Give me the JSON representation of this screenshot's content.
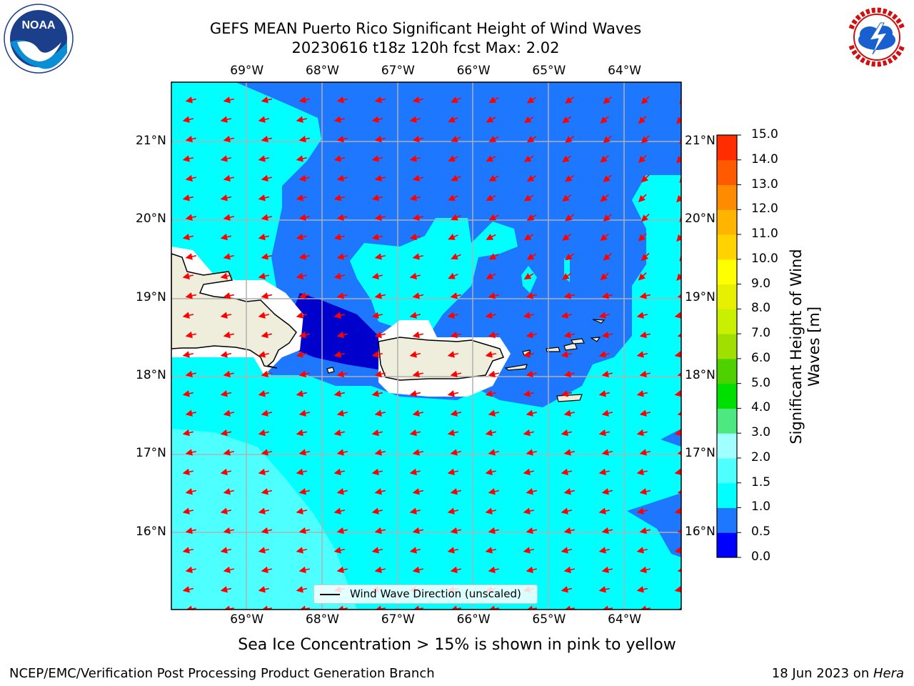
{
  "title": {
    "line1": "GEFS MEAN Puerto Rico Significant Height of Wind Waves",
    "line2": "20230616 t18z 120h fcst   Max: 2.02"
  },
  "caption": "Sea Ice Concentration > 15% is shown in pink to yellow",
  "footer": {
    "left": "NCEP/EMC/Verification Post Processing Product Generation Branch",
    "right_date": "18 Jun 2023 on ",
    "right_host": "Hera"
  },
  "logos": {
    "noaa": {
      "text": "NOAA",
      "ring_text": "NATIONAL OCEANIC AND ATMOSPHERIC ADMINISTRATION · U.S. DEPARTMENT OF COMMERCE"
    },
    "nws": {
      "ring_text": "NATIONAL WEATHER SERVICE"
    }
  },
  "map": {
    "lon_labels": [
      "69°W",
      "68°W",
      "67°W",
      "66°W",
      "65°W",
      "64°W"
    ],
    "lon_values": [
      -69,
      -68,
      -67,
      -66,
      -65,
      -64
    ],
    "lat_labels": [
      "21°N",
      "20°N",
      "19°N",
      "18°N",
      "17°N",
      "16°N"
    ],
    "lat_values": [
      21,
      20,
      19,
      18,
      17,
      16
    ],
    "lon_range": [
      -70.0,
      -63.25
    ],
    "lat_range": [
      15.0,
      21.75
    ],
    "legend_label": "Wind Wave Direction (unscaled)",
    "arrow_color": "#ff0000",
    "land_color": "#efeedd",
    "wave_direction": "toward west-southwest"
  },
  "colorbar": {
    "title": "Significant Height of Wind Waves [m]",
    "title_line1": "Significant Height of Wind",
    "title_line2": "Waves [m]",
    "ticks": [
      "0.0",
      "0.5",
      "1.0",
      "1.5",
      "2.0",
      "3.0",
      "4.0",
      "5.0",
      "6.0",
      "7.0",
      "8.0",
      "9.0",
      "10.0",
      "11.0",
      "12.0",
      "13.0",
      "14.0",
      "15.0"
    ],
    "colors": [
      "#0000ff",
      "#1e78ff",
      "#00ffff",
      "#4dffff",
      "#a0ffff",
      "#4de980",
      "#00e000",
      "#4dd200",
      "#a0e000",
      "#c8f000",
      "#e6f000",
      "#ffff00",
      "#ffd200",
      "#ffb400",
      "#ff8c00",
      "#ff5a00",
      "#ff2d00"
    ]
  },
  "chart_data": {
    "type": "heatmap",
    "title": "GEFS MEAN Puerto Rico Significant Height of Wind Waves",
    "subtitle": "20230616 t18z 120h fcst   Max: 2.02",
    "variable": "Significant Height of Wind Waves [m]",
    "max_value": 2.02,
    "colorbar_range": [
      0.0,
      15.0
    ],
    "x_ticks": [
      "69°W",
      "68°W",
      "67°W",
      "66°W",
      "65°W",
      "64°W"
    ],
    "y_ticks": [
      "21°N",
      "20°N",
      "19°N",
      "18°N",
      "17°N",
      "16°N"
    ],
    "regions": [
      {
        "band": "0.0–0.5",
        "location": "Mona Passage"
      },
      {
        "band": "0.5–1.0",
        "location": "north of Puerto Rico and Virgin Islands"
      },
      {
        "band": "1.0–1.5",
        "location": "Caribbean Sea south of 18°N"
      },
      {
        "band": "1.5–2.0",
        "location": "southwest Caribbean near 69°W 16°N"
      }
    ],
    "grid": true,
    "legend_position": "bottom-center"
  }
}
